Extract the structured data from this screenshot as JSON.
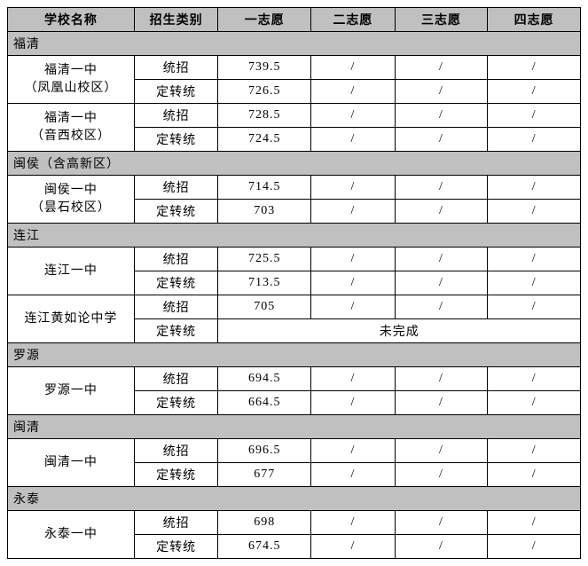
{
  "header": {
    "school": "学校名称",
    "category": "招生类别",
    "c1": "一志愿",
    "c2": "二志愿",
    "c3": "三志愿",
    "c4": "四志愿"
  },
  "regions": [
    {
      "name": "福清",
      "schools": [
        {
          "name_l1": "福清一中",
          "name_l2": "（凤凰山校区）",
          "rows": [
            {
              "cat": "统招",
              "c1": "739.5",
              "c2": "/",
              "c3": "/",
              "c4": "/"
            },
            {
              "cat": "定转统",
              "c1": "726.5",
              "c2": "/",
              "c3": "/",
              "c4": "/"
            }
          ]
        },
        {
          "name_l1": "福清一中",
          "name_l2": "（音西校区）",
          "rows": [
            {
              "cat": "统招",
              "c1": "728.5",
              "c2": "/",
              "c3": "/",
              "c4": "/"
            },
            {
              "cat": "定转统",
              "c1": "724.5",
              "c2": "/",
              "c3": "/",
              "c4": "/"
            }
          ]
        }
      ]
    },
    {
      "name": "闽侯（含高新区）",
      "schools": [
        {
          "name_l1": "闽侯一中",
          "name_l2": "（昙石校区）",
          "rows": [
            {
              "cat": "统招",
              "c1": "714.5",
              "c2": "/",
              "c3": "/",
              "c4": "/"
            },
            {
              "cat": "定转统",
              "c1": "703",
              "c2": "/",
              "c3": "/",
              "c4": "/"
            }
          ]
        }
      ]
    },
    {
      "name": "连江",
      "schools": [
        {
          "name_l1": "连江一中",
          "name_l2": "",
          "rows": [
            {
              "cat": "统招",
              "c1": "725.5",
              "c2": "/",
              "c3": "/",
              "c4": "/"
            },
            {
              "cat": "定转统",
              "c1": "713.5",
              "c2": "/",
              "c3": "/",
              "c4": "/"
            }
          ]
        },
        {
          "name_l1": "连江黄如论中学",
          "name_l2": "",
          "rows": [
            {
              "cat": "统招",
              "c1": "705",
              "c2": "/",
              "c3": "/",
              "c4": "/"
            },
            {
              "cat": "定转统",
              "span": true,
              "spantext": "未完成"
            }
          ]
        }
      ]
    },
    {
      "name": "罗源",
      "schools": [
        {
          "name_l1": "罗源一中",
          "name_l2": "",
          "rows": [
            {
              "cat": "统招",
              "c1": "694.5",
              "c2": "/",
              "c3": "/",
              "c4": "/"
            },
            {
              "cat": "定转统",
              "c1": "664.5",
              "c2": "/",
              "c3": "/",
              "c4": "/"
            }
          ]
        }
      ]
    },
    {
      "name": "闽清",
      "schools": [
        {
          "name_l1": "闽清一中",
          "name_l2": "",
          "rows": [
            {
              "cat": "统招",
              "c1": "696.5",
              "c2": "/",
              "c3": "/",
              "c4": "/"
            },
            {
              "cat": "定转统",
              "c1": "677",
              "c2": "/",
              "c3": "/",
              "c4": "/"
            }
          ]
        }
      ]
    },
    {
      "name": "永泰",
      "schools": [
        {
          "name_l1": "永泰一中",
          "name_l2": "",
          "rows": [
            {
              "cat": "统招",
              "c1": "698",
              "c2": "/",
              "c3": "/",
              "c4": "/"
            },
            {
              "cat": "定转统",
              "c1": "674.5",
              "c2": "/",
              "c3": "/",
              "c4": "/"
            }
          ]
        }
      ]
    }
  ]
}
